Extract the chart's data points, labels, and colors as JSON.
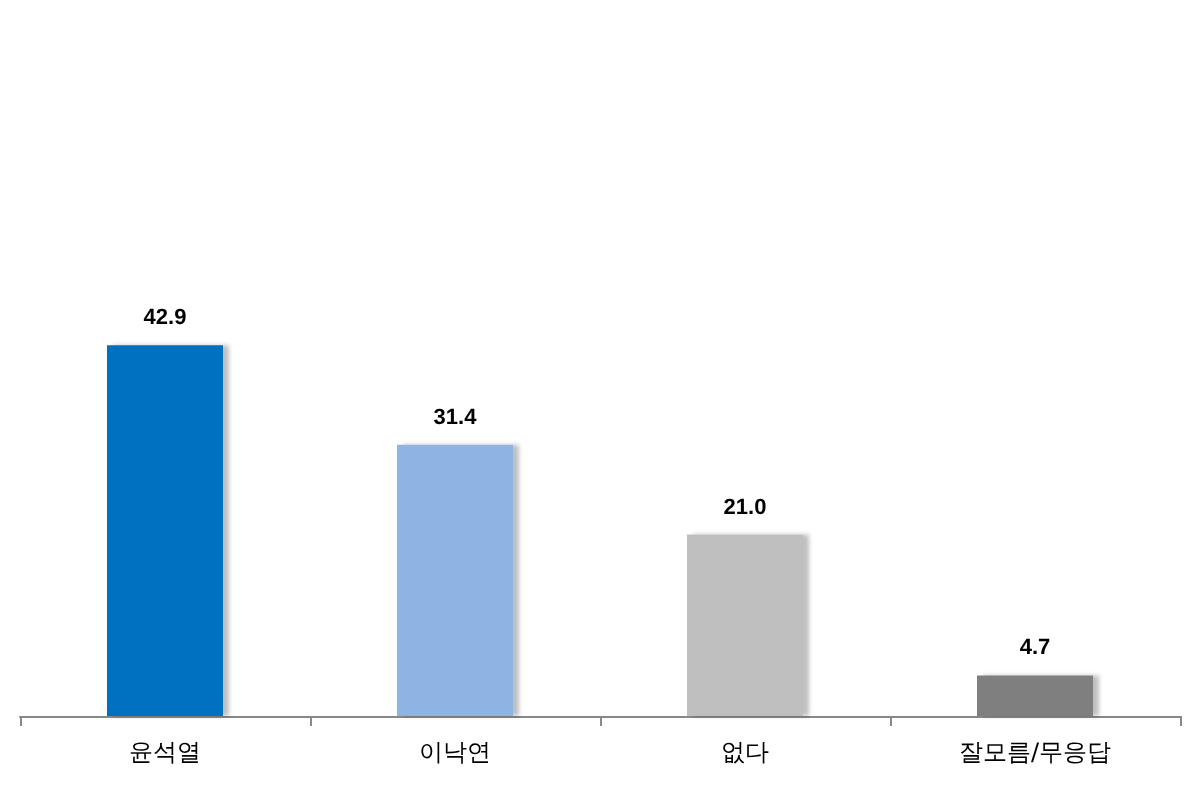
{
  "chart_data": {
    "type": "bar",
    "categories": [
      "윤석열",
      "이낙연",
      "없다",
      "잘모름/무응답"
    ],
    "values": [
      42.9,
      31.4,
      21.0,
      4.7
    ],
    "value_labels": [
      "42.9",
      "31.4",
      "21.0",
      "4.7"
    ],
    "colors": [
      "#0070c0",
      "#8db4e2",
      "#bfbfbf",
      "#7f7f7f"
    ]
  }
}
